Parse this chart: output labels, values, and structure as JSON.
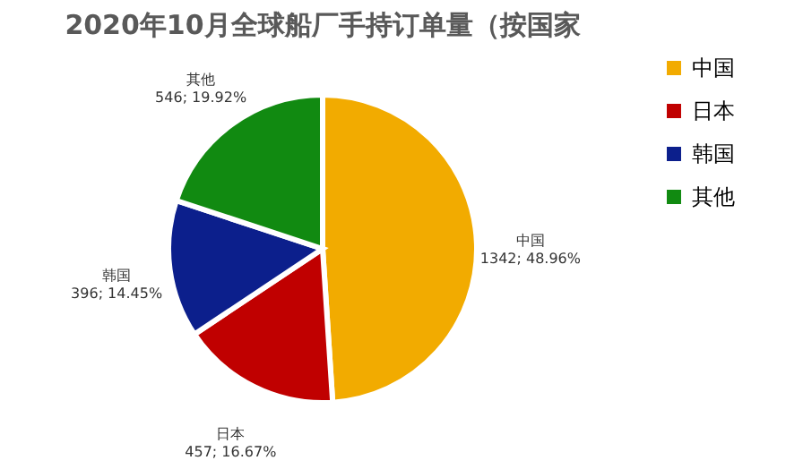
{
  "chart_data": {
    "type": "pie",
    "title": "2020年10月全球船厂手持订单量（按国家",
    "categories": [
      "中国",
      "日本",
      "韩国",
      "其他"
    ],
    "values": [
      1342,
      457,
      396,
      546
    ],
    "value_labels": [
      "1342; 48.96%",
      "457; 16.67%",
      "396; 14.45%",
      "546; 19.92%"
    ],
    "colors": [
      "#f2ab00",
      "#c00000",
      "#0c1f8c",
      "#118a11"
    ],
    "legend": "right"
  }
}
